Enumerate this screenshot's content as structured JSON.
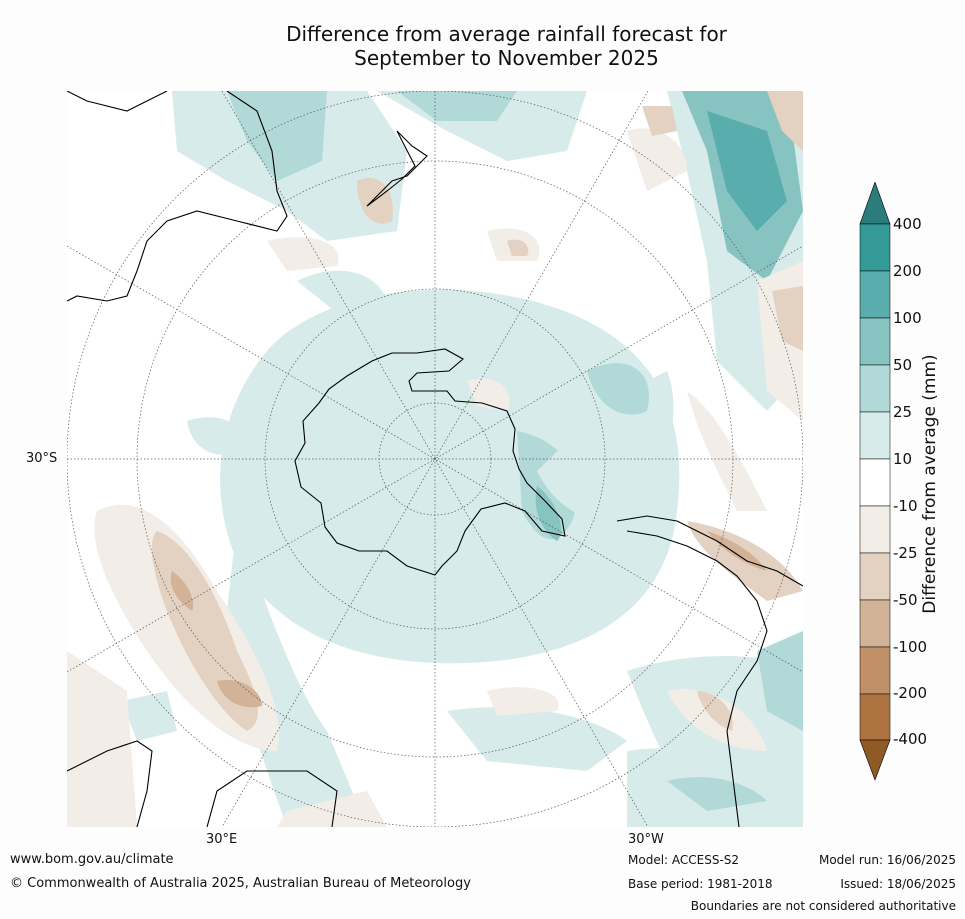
{
  "title_line1": "Difference from average rainfall forecast for",
  "title_line2": "September to November 2025",
  "map_labels": {
    "lat_label": "30°S",
    "lon_left": "30°E",
    "lon_right": "30°W"
  },
  "colorbar": {
    "title": "Difference from average (mm)",
    "ticks": [
      "400",
      "200",
      "100",
      "50",
      "25",
      "10",
      "-10",
      "-25",
      "-50",
      "-100",
      "-200",
      "-400"
    ],
    "colors_top_to_bottom": [
      "#2a7d7b",
      "#339a98",
      "#5aadad",
      "#86c3c1",
      "#b0d9d8",
      "#d6ebea",
      "#ffffff",
      "#f2ede7",
      "#e3d1c1",
      "#d3b397",
      "#c09069",
      "#ad7340",
      "#8f5a24"
    ]
  },
  "footer": {
    "website": "www.bom.gov.au/climate",
    "copyright": "© Commonwealth of Australia 2025, Australian Bureau of Meteorology",
    "model": "Model: ACCESS-S2",
    "base_period": "Base period: 1981-2018",
    "model_run": "Model run: 16/06/2025",
    "issued": "Issued: 18/06/2025",
    "disclaimer": "Boundaries are not considered authoritative"
  }
}
